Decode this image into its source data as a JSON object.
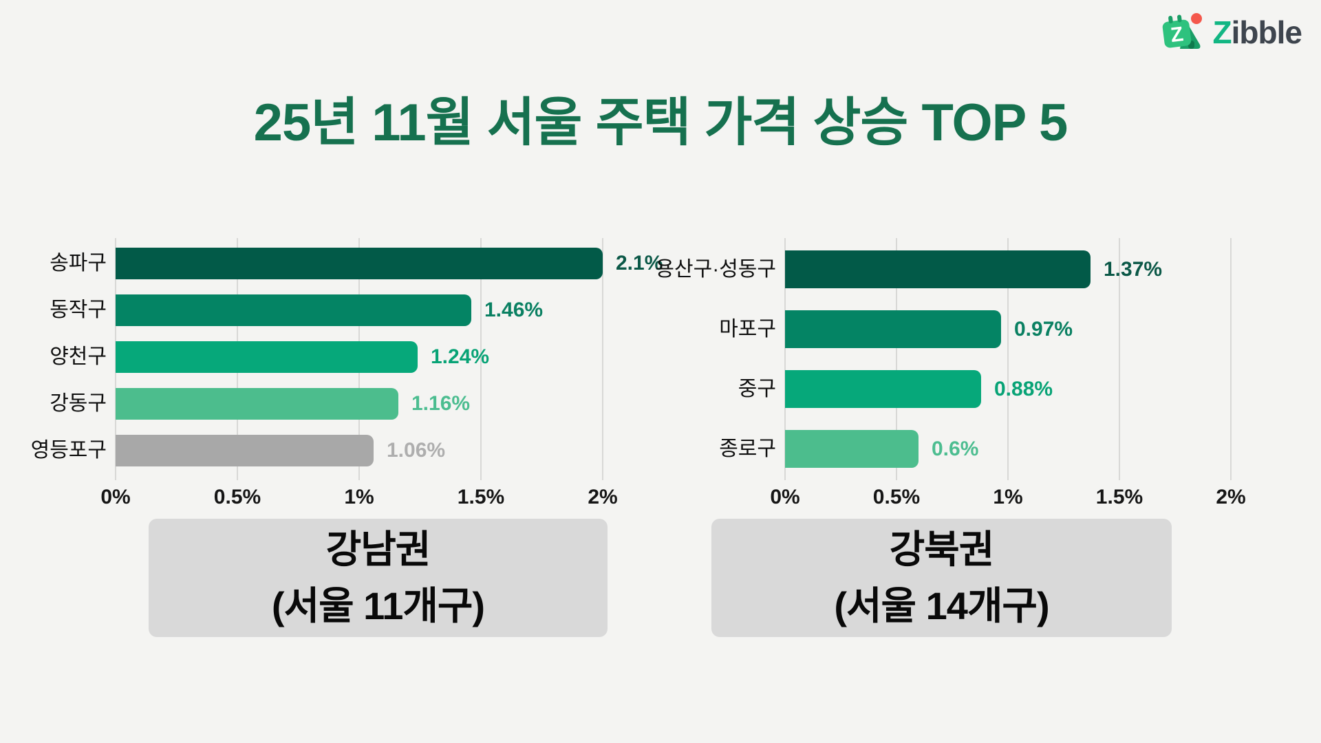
{
  "logo": {
    "icon": "zibble-tent-calendar-icon",
    "text_leading": "Z",
    "text_rest": "ibble",
    "colors": {
      "icon_green": "#2ec27e",
      "icon_dark_green": "#1a9e66",
      "icon_notch_green": "#0f7a4c",
      "icon_red_dot": "#f4584c",
      "wordmark_z": "#12b683",
      "wordmark_rest": "#3e454e"
    }
  },
  "title": "25년 11월 서울 주택 가격 상승 TOP 5",
  "title_color": "#16714f",
  "background_color": "#f4f4f2",
  "chart_data": [
    {
      "type": "bar",
      "orientation": "horizontal",
      "title": "강남권 (서울 11개구)",
      "categories": [
        "송파구",
        "동작구",
        "양천구",
        "강동구",
        "영등포구"
      ],
      "values": [
        2.1,
        1.46,
        1.24,
        1.16,
        1.06
      ],
      "value_labels": [
        "2.1%",
        "1.46%",
        "1.24%",
        "1.16%",
        "1.06%"
      ],
      "bar_colors": [
        "#025a48",
        "#048464",
        "#06a87a",
        "#4cbd8d",
        "#a8a8a8"
      ],
      "value_label_colors": [
        "#0b5847",
        "#0a8062",
        "#08a376",
        "#4cbd90",
        "#aeaeae"
      ],
      "xticks": [
        "0%",
        "0.5%",
        "1%",
        "1.5%",
        "2%"
      ],
      "xtick_values": [
        0,
        0.5,
        1,
        1.5,
        2
      ],
      "xlim": [
        0,
        2
      ],
      "grid": true,
      "legend": false,
      "note": "top bar (2.1%) is clipped at the 2% axis maximum"
    },
    {
      "type": "bar",
      "orientation": "horizontal",
      "title": "강북권 (서울 14개구)",
      "categories": [
        "용산구·성동구",
        "마포구",
        "중구",
        "종로구"
      ],
      "values": [
        1.37,
        0.97,
        0.88,
        0.6
      ],
      "value_labels": [
        "1.37%",
        "0.97%",
        "0.88%",
        "0.6%"
      ],
      "bar_colors": [
        "#025a48",
        "#048464",
        "#06a87a",
        "#4cbd8d"
      ],
      "value_label_colors": [
        "#0b5847",
        "#0a8062",
        "#08a376",
        "#4cbd90"
      ],
      "xticks": [
        "0%",
        "0.5%",
        "1%",
        "1.5%",
        "2%"
      ],
      "xtick_values": [
        0,
        0.5,
        1,
        1.5,
        2
      ],
      "xlim": [
        0,
        2
      ],
      "grid": true,
      "legend": false
    }
  ],
  "captions": [
    {
      "line1": "강남권",
      "line2": "(서울 11개구)"
    },
    {
      "line1": "강북권",
      "line2": "(서울 14개구)"
    }
  ]
}
